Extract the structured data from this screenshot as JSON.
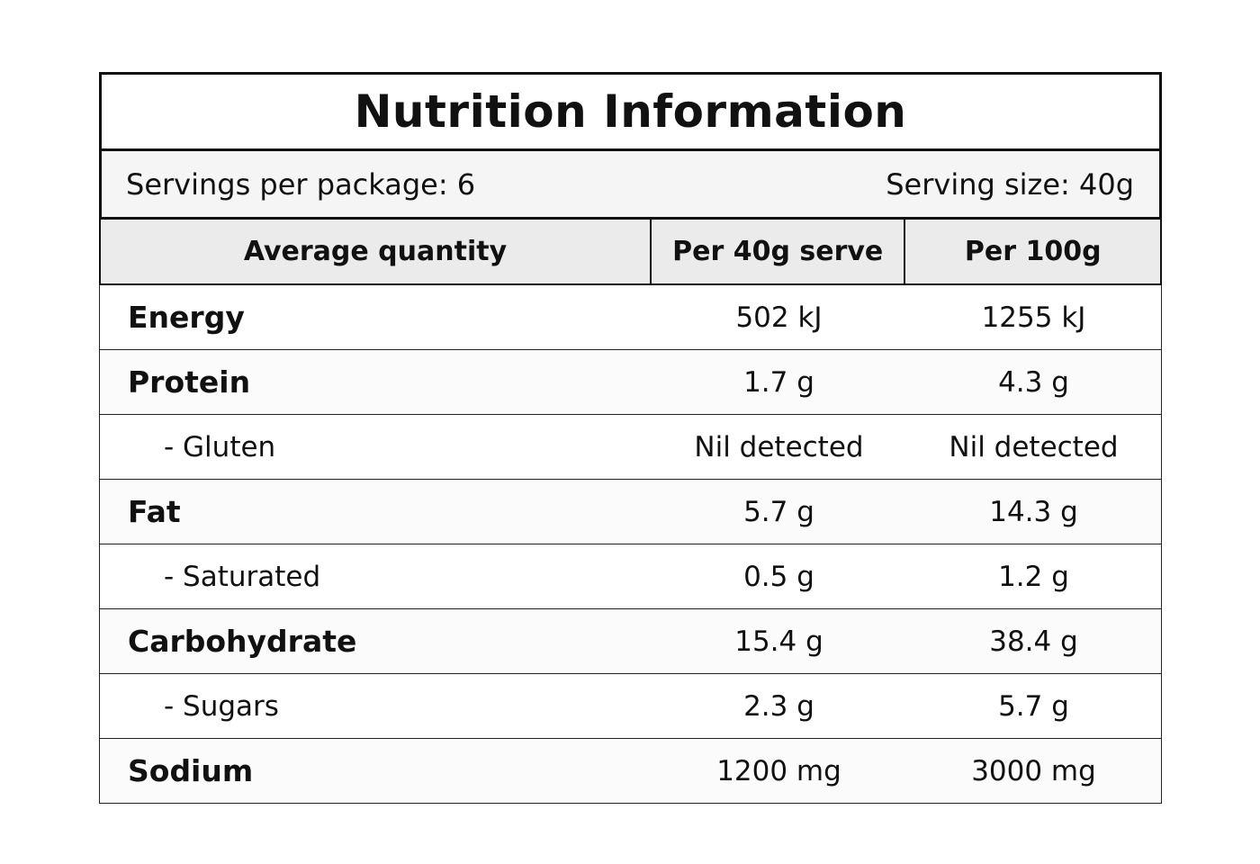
{
  "title": "Nutrition Information",
  "servings": {
    "per_package": "Servings per package: 6",
    "size": "Serving size: 40g"
  },
  "columns": [
    "Average quantity",
    "Per 40g serve",
    "Per 100g"
  ],
  "rows": [
    {
      "label": "Energy",
      "type": "main",
      "serve": "502 kJ",
      "per100": "1255 kJ"
    },
    {
      "label": "Protein",
      "type": "main",
      "serve": "1.7 g",
      "per100": "4.3 g"
    },
    {
      "label": "- Gluten",
      "type": "sub",
      "serve": "Nil detected",
      "per100": "Nil detected"
    },
    {
      "label": "Fat",
      "type": "main",
      "serve": "5.7 g",
      "per100": "14.3 g"
    },
    {
      "label": "- Saturated",
      "type": "sub",
      "serve": "0.5 g",
      "per100": "1.2 g"
    },
    {
      "label": "Carbohydrate",
      "type": "main",
      "serve": "15.4 g",
      "per100": "38.4 g"
    },
    {
      "label": "- Sugars",
      "type": "sub",
      "serve": "2.3 g",
      "per100": "5.7 g"
    },
    {
      "label": "Sodium",
      "type": "main",
      "serve": "1200 mg",
      "per100": "3000 mg"
    }
  ]
}
